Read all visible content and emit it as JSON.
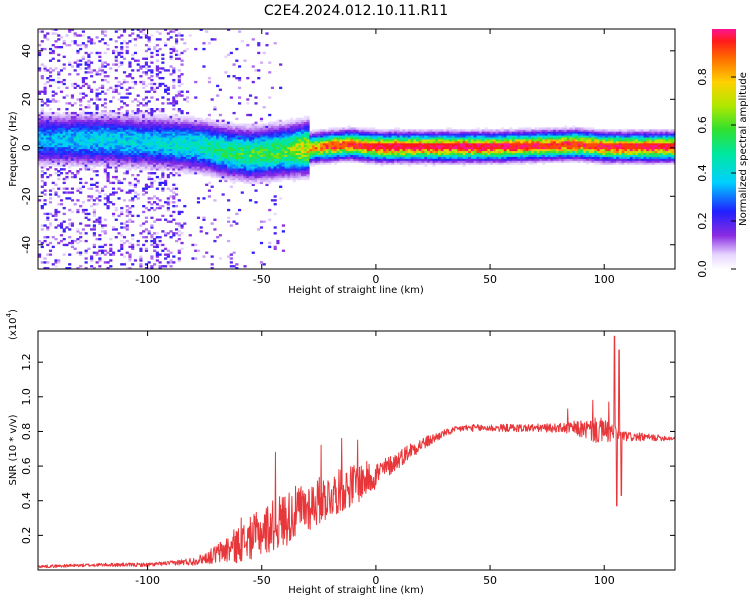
{
  "figure_title": "C2E4.2024.012.10.11.R11",
  "colors": {
    "snr_line": "#e8373a",
    "axis": "#000000",
    "spectrogram_background": "#ffffff"
  },
  "chart_data": [
    {
      "type": "heatmap",
      "title": "",
      "xlabel": "Height of straight line (km)",
      "ylabel": "Frequency (Hz)",
      "xlim": [
        -148,
        131
      ],
      "ylim": [
        -50,
        49
      ],
      "x_ticks": [
        "-100",
        "-50",
        "0",
        "50",
        "100"
      ],
      "x_tick_values": [
        -100,
        -50,
        0,
        50,
        100
      ],
      "y_ticks": [
        "-40",
        "-20",
        "0",
        "20",
        "40"
      ],
      "y_tick_values": [
        -40,
        -20,
        0,
        20,
        40
      ],
      "colorbar": {
        "label": "Normalized spectral amplitude",
        "range": [
          0,
          1
        ],
        "ticks": [
          "0.0",
          "0.2",
          "0.4",
          "0.6",
          "0.8"
        ],
        "tick_values": [
          0.0,
          0.2,
          0.4,
          0.6,
          0.8
        ]
      },
      "ridge_center_hz": [
        {
          "x": -145,
          "y": 3
        },
        {
          "x": -120,
          "y": 3
        },
        {
          "x": -100,
          "y": 2
        },
        {
          "x": -85,
          "y": 1
        },
        {
          "x": -75,
          "y": 0
        },
        {
          "x": -65,
          "y": -2
        },
        {
          "x": -55,
          "y": -3
        },
        {
          "x": -45,
          "y": -2
        },
        {
          "x": -35,
          "y": -1
        },
        {
          "x": -25,
          "y": 0
        },
        {
          "x": -12,
          "y": 1
        },
        {
          "x": 0,
          "y": 0
        },
        {
          "x": 50,
          "y": 0
        },
        {
          "x": 88,
          "y": 1
        },
        {
          "x": 100,
          "y": 0
        },
        {
          "x": 131,
          "y": 0
        }
      ],
      "ridge_amplitude": [
        {
          "x": -145,
          "a": 0.35
        },
        {
          "x": -120,
          "a": 0.4
        },
        {
          "x": -100,
          "a": 0.4
        },
        {
          "x": -80,
          "a": 0.45
        },
        {
          "x": -60,
          "a": 0.55
        },
        {
          "x": -40,
          "a": 0.6
        },
        {
          "x": -25,
          "a": 0.85
        },
        {
          "x": -12,
          "a": 0.9
        },
        {
          "x": 0,
          "a": 0.95
        },
        {
          "x": 40,
          "a": 0.95
        },
        {
          "x": 88,
          "a": 0.9
        },
        {
          "x": 131,
          "a": 0.95
        }
      ]
    },
    {
      "type": "line",
      "title": "",
      "xlabel": "Height of straight line (km)",
      "ylabel": "SNR (10 * v/v)",
      "scale_label": "(x10",
      "scale_exponent": "4",
      "xlim": [
        -148,
        131
      ],
      "ylim": [
        0,
        1.38
      ],
      "x_ticks": [
        "-100",
        "-50",
        "0",
        "50",
        "100"
      ],
      "x_tick_values": [
        -100,
        -50,
        0,
        50,
        100
      ],
      "y_ticks": [
        "0.2",
        "0.4",
        "0.6",
        "0.8",
        "1.0",
        "1.2"
      ],
      "y_tick_values": [
        0.2,
        0.4,
        0.6,
        0.8,
        1.0,
        1.2
      ],
      "series": [
        {
          "name": "SNR",
          "envelope": [
            {
              "x": -148,
              "y": 0.02
            },
            {
              "x": -120,
              "y": 0.03
            },
            {
              "x": -100,
              "y": 0.03
            },
            {
              "x": -90,
              "y": 0.04
            },
            {
              "x": -80,
              "y": 0.05
            },
            {
              "x": -72,
              "y": 0.08
            },
            {
              "x": -65,
              "y": 0.12
            },
            {
              "x": -58,
              "y": 0.16
            },
            {
              "x": -50,
              "y": 0.22
            },
            {
              "x": -42,
              "y": 0.28
            },
            {
              "x": -35,
              "y": 0.33
            },
            {
              "x": -28,
              "y": 0.38
            },
            {
              "x": -20,
              "y": 0.43
            },
            {
              "x": -12,
              "y": 0.48
            },
            {
              "x": -5,
              "y": 0.52
            },
            {
              "x": 0,
              "y": 0.55
            },
            {
              "x": 8,
              "y": 0.62
            },
            {
              "x": 16,
              "y": 0.7
            },
            {
              "x": 24,
              "y": 0.75
            },
            {
              "x": 30,
              "y": 0.79
            },
            {
              "x": 38,
              "y": 0.82
            },
            {
              "x": 50,
              "y": 0.82
            },
            {
              "x": 70,
              "y": 0.82
            },
            {
              "x": 85,
              "y": 0.82
            },
            {
              "x": 100,
              "y": 0.8
            },
            {
              "x": 110,
              "y": 0.77
            },
            {
              "x": 131,
              "y": 0.76
            }
          ],
          "noise": [
            {
              "x": -148,
              "a": 0.008
            },
            {
              "x": -90,
              "a": 0.012
            },
            {
              "x": -75,
              "a": 0.03
            },
            {
              "x": -62,
              "a": 0.1
            },
            {
              "x": -50,
              "a": 0.14
            },
            {
              "x": -40,
              "a": 0.16
            },
            {
              "x": -30,
              "a": 0.15
            },
            {
              "x": -20,
              "a": 0.13
            },
            {
              "x": -8,
              "a": 0.12
            },
            {
              "x": 5,
              "a": 0.06
            },
            {
              "x": 20,
              "a": 0.04
            },
            {
              "x": 30,
              "a": 0.02
            },
            {
              "x": 80,
              "a": 0.025
            },
            {
              "x": 90,
              "a": 0.05
            },
            {
              "x": 98,
              "a": 0.08
            },
            {
              "x": 108,
              "a": 0.03
            },
            {
              "x": 131,
              "a": 0.012
            }
          ],
          "spikes": [
            {
              "x": -59,
              "y": 0.3
            },
            {
              "x": -44,
              "y": 0.68
            },
            {
              "x": -33,
              "y": 0.45
            },
            {
              "x": -24,
              "y": 0.72
            },
            {
              "x": -15,
              "y": 0.76
            },
            {
              "x": -8,
              "y": 0.75
            },
            {
              "x": 84,
              "y": 0.93
            },
            {
              "x": 95,
              "y": 0.98
            },
            {
              "x": 102,
              "y": 0.97
            },
            {
              "x": 104.5,
              "y": 1.35
            },
            {
              "x": 105.5,
              "y": 0.37
            },
            {
              "x": 106.5,
              "y": 1.27
            },
            {
              "x": 107.5,
              "y": 0.43
            }
          ]
        }
      ]
    }
  ]
}
